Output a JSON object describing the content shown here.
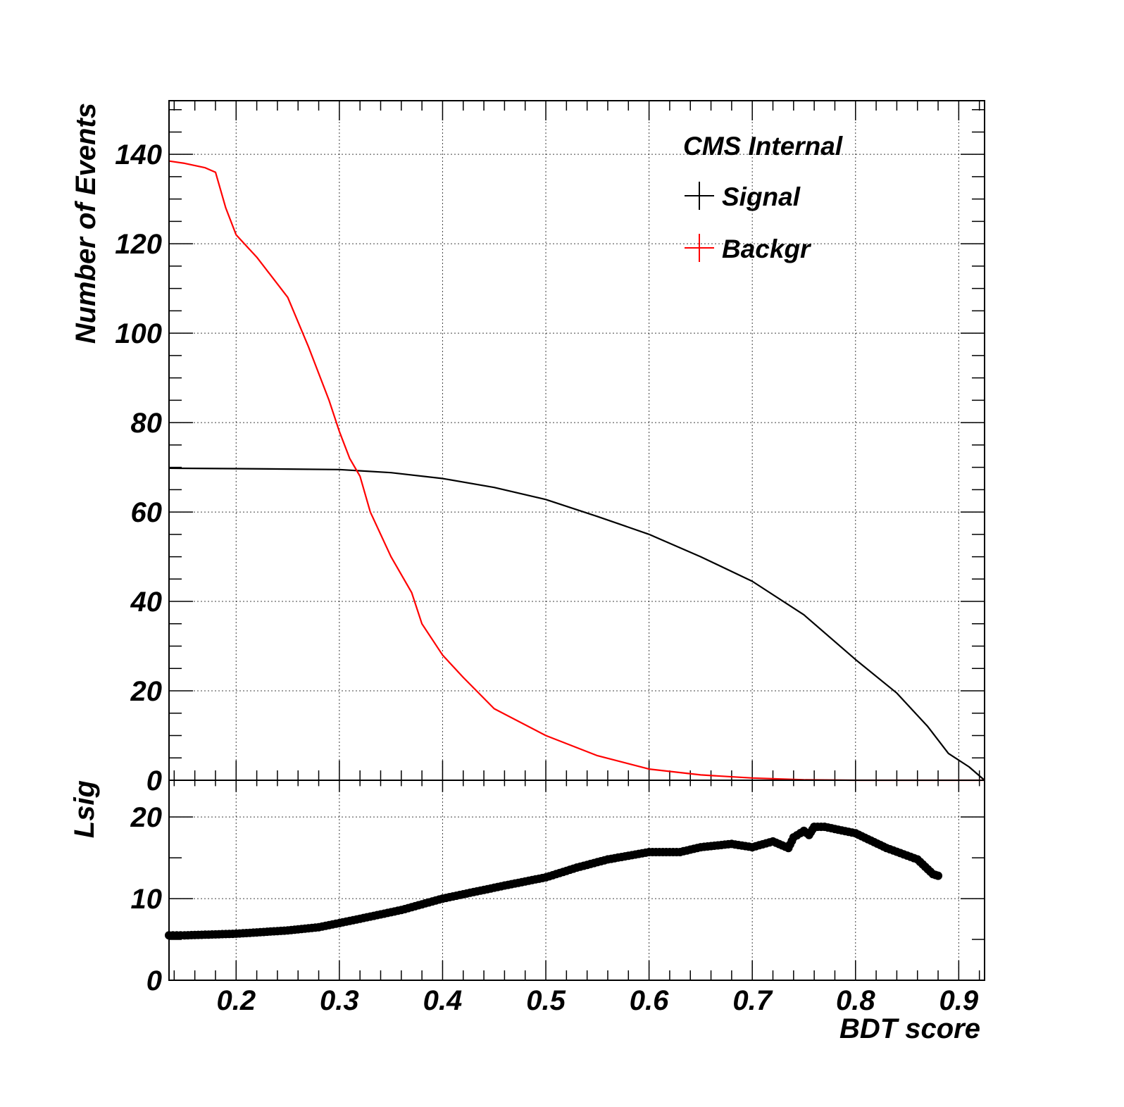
{
  "chart_data": [
    {
      "type": "line",
      "title": "",
      "xlabel": "",
      "ylabel": "Number of Events",
      "xlim": [
        0.135,
        0.925
      ],
      "ylim": [
        0,
        152
      ],
      "yticks": [
        0,
        20,
        40,
        60,
        80,
        100,
        120,
        140
      ],
      "ytick_labels": [
        "0",
        "20",
        "40",
        "60",
        "80",
        "100",
        "120",
        "140"
      ],
      "grid": true,
      "annotation": "CMS Internal",
      "legend_position": "top-right",
      "series": [
        {
          "name": "Signal",
          "color": "#000000",
          "x": [
            0.135,
            0.2,
            0.25,
            0.3,
            0.35,
            0.4,
            0.45,
            0.5,
            0.55,
            0.6,
            0.65,
            0.7,
            0.75,
            0.8,
            0.84,
            0.87,
            0.89,
            0.91,
            0.925
          ],
          "y": [
            69.8,
            69.7,
            69.6,
            69.5,
            68.8,
            67.5,
            65.5,
            62.8,
            59,
            55,
            50,
            44.5,
            37,
            27,
            19.5,
            12,
            6,
            3,
            0
          ]
        },
        {
          "name": "Backgr",
          "color": "#ff0000",
          "x": [
            0.135,
            0.15,
            0.17,
            0.18,
            0.19,
            0.2,
            0.22,
            0.25,
            0.27,
            0.29,
            0.3,
            0.31,
            0.32,
            0.33,
            0.35,
            0.37,
            0.38,
            0.4,
            0.42,
            0.45,
            0.5,
            0.55,
            0.6,
            0.65,
            0.7,
            0.75,
            0.8,
            0.925
          ],
          "y": [
            138.5,
            138,
            137,
            136,
            128,
            122,
            117,
            108,
            97,
            85,
            78,
            72,
            68,
            60,
            50,
            42,
            35,
            28,
            23,
            16,
            10,
            5.5,
            2.5,
            1.2,
            0.5,
            0.1,
            0,
            0
          ]
        }
      ]
    },
    {
      "type": "scatter",
      "title": "",
      "xlabel": "BDT score",
      "ylabel": "Lsig",
      "xlim": [
        0.135,
        0.925
      ],
      "ylim": [
        0,
        24.5
      ],
      "yticks": [
        0,
        10,
        20
      ],
      "ytick_labels": [
        "0",
        "10",
        "20"
      ],
      "xticks": [
        0.2,
        0.3,
        0.4,
        0.5,
        0.6,
        0.7,
        0.8,
        0.9
      ],
      "xtick_labels": [
        "0.2",
        "0.3",
        "0.4",
        "0.5",
        "0.6",
        "0.7",
        "0.8",
        "0.9"
      ],
      "grid": true,
      "series": [
        {
          "color": "#000000",
          "x": [
            0.135,
            0.15,
            0.2,
            0.25,
            0.28,
            0.3,
            0.33,
            0.36,
            0.38,
            0.4,
            0.43,
            0.46,
            0.5,
            0.53,
            0.56,
            0.6,
            0.63,
            0.65,
            0.68,
            0.7,
            0.72,
            0.735,
            0.74,
            0.75,
            0.755,
            0.76,
            0.77,
            0.8,
            0.83,
            0.86,
            0.875,
            0.88
          ],
          "y": [
            5.5,
            5.5,
            5.7,
            6.1,
            6.5,
            7.0,
            7.8,
            8.6,
            9.3,
            10.0,
            10.8,
            11.6,
            12.6,
            13.8,
            14.8,
            15.7,
            15.7,
            16.3,
            16.7,
            16.3,
            17,
            16.2,
            17.5,
            18.3,
            17.8,
            18.8,
            18.8,
            18,
            16.2,
            14.8,
            13,
            12.8
          ]
        }
      ]
    }
  ]
}
